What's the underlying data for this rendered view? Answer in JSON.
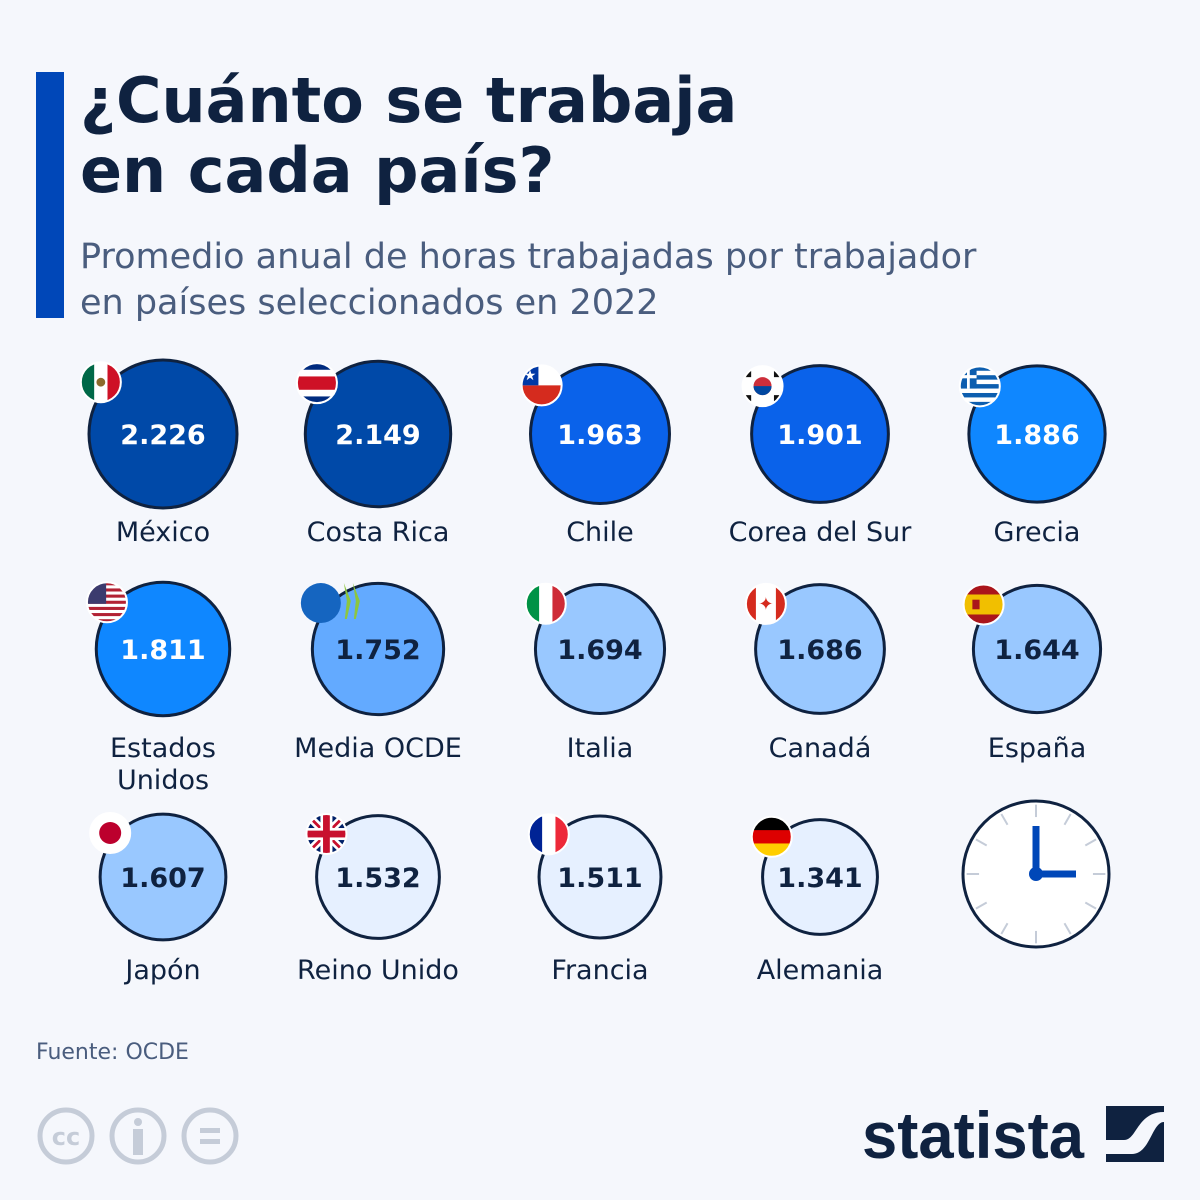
{
  "header": {
    "title_line1": "¿Cuánto se trabaja",
    "title_line2": "en cada país?",
    "subtitle_line1": "Promedio anual de horas trabajadas por trabajador",
    "subtitle_line2": "en países seleccionados en 2022"
  },
  "chart_data": {
    "type": "bubble",
    "unit": "horas",
    "categories": [
      "México",
      "Costa Rica",
      "Chile",
      "Corea del Sur",
      "Grecia",
      "Estados Unidos",
      "Media OCDE",
      "Italia",
      "Canadá",
      "España",
      "Japón",
      "Reino Unido",
      "Francia",
      "Alemania"
    ],
    "values": [
      2226,
      2149,
      1963,
      1901,
      1886,
      1811,
      1752,
      1694,
      1686,
      1644,
      1607,
      1532,
      1511,
      1341
    ],
    "value_labels": [
      "2.226",
      "2.149",
      "1.963",
      "1.901",
      "1.886",
      "1.811",
      "1.752",
      "1.694",
      "1.686",
      "1.644",
      "1.607",
      "1.532",
      "1.511",
      "1.341"
    ],
    "colors": [
      "#0049a8",
      "#0049a8",
      "#0a62ea",
      "#0a62ea",
      "#0f87ff",
      "#0f87ff",
      "#63aaff",
      "#99c8ff",
      "#99c8ff",
      "#99c8ff",
      "#99c8ff",
      "#e6f0ff",
      "#e6f0ff",
      "#e6f0ff"
    ],
    "flags": [
      "mx",
      "cr",
      "cl",
      "kr",
      "gr",
      "us",
      "oecd",
      "it",
      "ca",
      "es",
      "jp",
      "gb",
      "fr",
      "de"
    ]
  },
  "footer": {
    "source": "Fuente: OCDE",
    "brand": "statista",
    "license_icons": [
      "cc-icon",
      "attribution-icon",
      "no-derivatives-icon"
    ]
  },
  "colors": {
    "text": "#0f2240",
    "accent": "#0047b8",
    "background": "#f5f7fc"
  }
}
